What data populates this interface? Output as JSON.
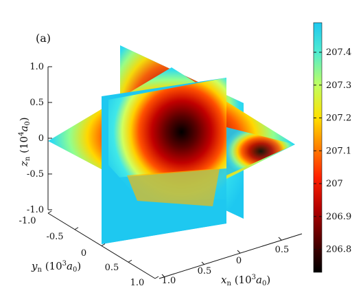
{
  "figure": {
    "panel_label": "(a)"
  },
  "chart_data": {
    "type": "heatmap",
    "title": "",
    "colormap": "jet",
    "colorbar": {
      "ticks": [
        "206.8",
        "206.9",
        "207",
        "207.1",
        "207.2",
        "207.3",
        "207.4"
      ],
      "range": [
        206.73,
        207.49
      ]
    },
    "axes": {
      "x": {
        "label_sym": "x",
        "label_sub": "n",
        "label_unit_pre": " (10",
        "label_unit_exp": "3",
        "label_unit_a": "a",
        "label_unit_sub": "0",
        "label_unit_post": ")",
        "ticks": [
          "0",
          "0.5",
          "0.5",
          "1.0"
        ]
      },
      "y": {
        "label_sym": "y",
        "label_sub": "n",
        "label_unit_pre": " (10",
        "label_unit_exp": "3",
        "label_unit_a": "a",
        "label_unit_sub": "0",
        "label_unit_post": ")",
        "ticks": [
          "-1.0",
          "-0.5",
          "0",
          "0.5",
          "1.0"
        ]
      },
      "z": {
        "label_sym": "z",
        "label_sub": "n",
        "label_unit_pre": " (10",
        "label_unit_exp": "4",
        "label_unit_a": "a",
        "label_unit_sub": "0",
        "label_unit_post": ")",
        "ticks": [
          "1.0",
          "0.5",
          "0",
          "-0.5",
          "-1.0"
        ]
      }
    },
    "description_values": {
      "center_value": 206.75,
      "outer_value": 207.45
    }
  }
}
